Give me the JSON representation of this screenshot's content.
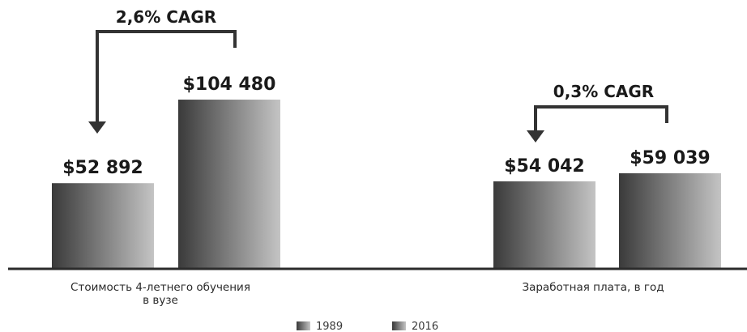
{
  "chart_data": {
    "type": "bar",
    "categories": [
      [
        "Стоимость 4-летнего обучения",
        "в вузе"
      ],
      [
        "Заработная плата, в год"
      ]
    ],
    "series": [
      {
        "name": "1989",
        "values": [
          52892,
          54042
        ]
      },
      {
        "name": "2016",
        "values": [
          104480,
          59039
        ]
      }
    ],
    "value_labels": [
      [
        "$52 892",
        "$54 042"
      ],
      [
        "$104 480",
        "$59 039"
      ]
    ],
    "annotations": [
      "2,6% CAGR",
      "0,3% CAGR"
    ],
    "ylim": [
      0,
      120000
    ],
    "grid": false,
    "legend_position": "bottom-center",
    "colors": {
      "bar_dark": "#3a3a3a",
      "bar_light": "#c4c4c4",
      "axis": "#2b2b2b",
      "arrow": "#333333"
    }
  }
}
